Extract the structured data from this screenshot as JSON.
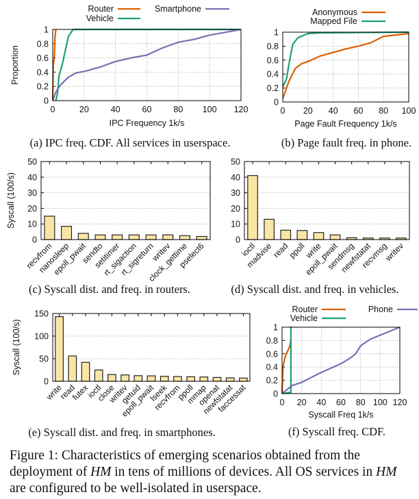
{
  "figure_caption": {
    "prefix": "Figure 1: Characteristics of emerging scenarios obtained from the deployment of ",
    "hm1": "HM",
    "middle": " in tens of millions of devices. All OS services in ",
    "hm2": "HM",
    "suffix": " are configured to be well-isolated in userspace."
  },
  "chart_data": [
    {
      "id": "a",
      "type": "line",
      "caption": "(a) IPC freq. CDF. All services in userspace.",
      "xlabel": "IPC Frequency 1k/s",
      "ylabel": "Proportion",
      "xlim": [
        0,
        120
      ],
      "ylim": [
        0,
        1
      ],
      "grid": true,
      "legend": "top",
      "xticks": [
        0,
        20,
        40,
        60,
        80,
        100,
        120
      ],
      "yticks": [
        0,
        0.2,
        0.4,
        0.6,
        0.8,
        1
      ],
      "series": [
        {
          "name": "Router",
          "color": "#d95f02",
          "points": [
            [
              0,
              0
            ],
            [
              0.4,
              0.5
            ],
            [
              1,
              0.6
            ],
            [
              1.5,
              0.9
            ],
            [
              2,
              1
            ]
          ]
        },
        {
          "name": "Vehicle",
          "color": "#1b9e77",
          "points": [
            [
              2,
              0
            ],
            [
              3,
              0.1
            ],
            [
              4,
              0.35
            ],
            [
              6,
              0.5
            ],
            [
              8,
              0.7
            ],
            [
              10,
              0.9
            ],
            [
              13,
              1
            ],
            [
              120,
              1
            ]
          ]
        },
        {
          "name": "Smartphone",
          "color": "#7570b3",
          "points": [
            [
              0,
              0
            ],
            [
              2,
              0.12
            ],
            [
              5,
              0.22
            ],
            [
              10,
              0.33
            ],
            [
              15,
              0.39
            ],
            [
              20,
              0.41
            ],
            [
              30,
              0.47
            ],
            [
              40,
              0.55
            ],
            [
              50,
              0.6
            ],
            [
              60,
              0.64
            ],
            [
              70,
              0.74
            ],
            [
              80,
              0.82
            ],
            [
              90,
              0.86
            ],
            [
              100,
              0.92
            ],
            [
              110,
              0.96
            ],
            [
              120,
              1
            ]
          ]
        }
      ]
    },
    {
      "id": "b",
      "type": "line",
      "caption": "(b) Page fault freq. in phone.",
      "xlabel": "Page Fault Frequency 1k/s",
      "ylabel": "",
      "xlim": [
        0,
        100
      ],
      "ylim": [
        0,
        1
      ],
      "grid": true,
      "legend": "top",
      "xticks": [
        0,
        20,
        40,
        60,
        80,
        100
      ],
      "yticks": [
        0,
        0.2,
        0.4,
        0.6,
        0.8,
        1
      ],
      "series": [
        {
          "name": "Anonymous",
          "color": "#d95f02",
          "points": [
            [
              0,
              0.05
            ],
            [
              5,
              0.3
            ],
            [
              10,
              0.48
            ],
            [
              15,
              0.55
            ],
            [
              20,
              0.58
            ],
            [
              30,
              0.66
            ],
            [
              40,
              0.71
            ],
            [
              50,
              0.76
            ],
            [
              60,
              0.8
            ],
            [
              70,
              0.85
            ],
            [
              80,
              0.94
            ],
            [
              90,
              0.96
            ],
            [
              100,
              0.98
            ]
          ]
        },
        {
          "name": "Mapped File",
          "color": "#1b9e77",
          "points": [
            [
              0,
              0.22
            ],
            [
              3,
              0.33
            ],
            [
              5,
              0.55
            ],
            [
              8,
              0.83
            ],
            [
              12,
              0.92
            ],
            [
              20,
              0.98
            ],
            [
              30,
              0.99
            ],
            [
              100,
              1
            ]
          ]
        }
      ]
    },
    {
      "id": "c",
      "type": "bar",
      "caption": "(c) Syscall dist. and freq. in routers.",
      "ylabel": "Syscall (100/s)",
      "ylim": [
        0,
        50
      ],
      "yticks": [
        0,
        10,
        20,
        30,
        40,
        50
      ],
      "grid": true,
      "categories": [
        "recvfrom",
        "nanosleep",
        "epoll_pwait",
        "sendto",
        "setitimer",
        "rt_sigaction",
        "rt_sigreturn",
        "writev",
        "clock_gettime",
        "pselect6"
      ],
      "values": [
        15,
        8.5,
        4,
        3,
        3,
        3,
        3,
        3,
        2.5,
        2
      ]
    },
    {
      "id": "d",
      "type": "bar",
      "caption": "(d) Syscall dist. and freq. in vehicles.",
      "ylabel": "",
      "ylim": [
        0,
        50
      ],
      "yticks": [
        0,
        10,
        20,
        30,
        40,
        50
      ],
      "grid": true,
      "categories": [
        "ioctl",
        "madvise",
        "read",
        "ppoll",
        "write",
        "epoll_pwait",
        "sendmsg",
        "newfstatat",
        "recvmsg",
        "writev"
      ],
      "values": [
        41,
        13,
        6,
        5.8,
        4.5,
        3,
        1.2,
        1,
        1,
        1
      ]
    },
    {
      "id": "e",
      "type": "bar",
      "caption": "(e) Syscall dist. and freq. in smartphones.",
      "ylabel": "Syscall (100/s)",
      "ylim": [
        0,
        150
      ],
      "yticks": [
        0,
        50,
        100,
        150
      ],
      "grid": true,
      "categories": [
        "write",
        "read",
        "futex",
        "ioctl",
        "close",
        "writev",
        "getuid",
        "epoll_pwait",
        "lseek",
        "recvfrom",
        "ppoll",
        "mmap",
        "openat",
        "newfstatat",
        "faccessat"
      ],
      "values": [
        143,
        56,
        42,
        25,
        15,
        14,
        12.5,
        12,
        11,
        10.5,
        10,
        9.5,
        8.5,
        7.5,
        7
      ]
    },
    {
      "id": "f",
      "type": "line",
      "caption": "(f) Syscall freq. CDF.",
      "xlabel": "Syscall Freq 1k/s",
      "ylabel": "",
      "xlim": [
        0,
        120
      ],
      "ylim": [
        0,
        1
      ],
      "grid": true,
      "legend": "top",
      "xticks": [
        0,
        20,
        40,
        60,
        80,
        100,
        120
      ],
      "yticks": [
        0,
        0.2,
        0.4,
        0.6,
        0.8,
        1
      ],
      "series": [
        {
          "name": "Router",
          "color": "#d95f02",
          "points": [
            [
              0,
              0
            ],
            [
              1,
              0.4
            ],
            [
              3,
              0.55
            ],
            [
              6,
              0.65
            ],
            [
              8,
              0.72
            ],
            [
              8.5,
              0.78
            ]
          ]
        },
        {
          "name": "Vehicle",
          "color": "#1b9e77",
          "points": [
            [
              0,
              0
            ],
            [
              5,
              0.01
            ],
            [
              9,
              0.02
            ],
            [
              9,
              1
            ],
            [
              10,
              1
            ]
          ]
        },
        {
          "name": "Phone",
          "color": "#7570b3",
          "points": [
            [
              0,
              0
            ],
            [
              10,
              0.12
            ],
            [
              20,
              0.17
            ],
            [
              40,
              0.32
            ],
            [
              60,
              0.45
            ],
            [
              70,
              0.54
            ],
            [
              75,
              0.6
            ],
            [
              80,
              0.72
            ],
            [
              90,
              0.82
            ],
            [
              100,
              0.88
            ],
            [
              120,
              1
            ]
          ]
        }
      ]
    }
  ]
}
